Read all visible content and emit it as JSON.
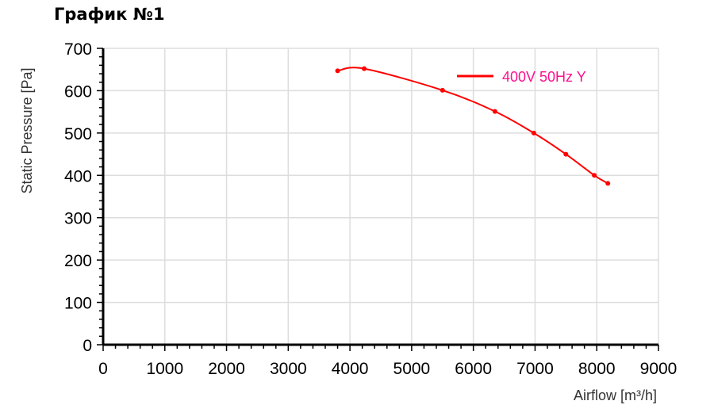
{
  "page": {
    "heading": "График №1"
  },
  "chart_data": {
    "type": "line",
    "title": "",
    "xlabel": "Airflow [m³/h]",
    "ylabel": "Static Pressure [Pa]",
    "xlim": [
      0,
      9000
    ],
    "ylim": [
      0,
      700
    ],
    "x_ticks": [
      "0",
      "1000",
      "2000",
      "3000",
      "4000",
      "5000",
      "6000",
      "7000",
      "8000",
      "9000"
    ],
    "y_ticks": [
      "0",
      "100",
      "200",
      "300",
      "400",
      "500",
      "600",
      "700"
    ],
    "grid": true,
    "legend": "top-right",
    "series": [
      {
        "name": "400V 50Hz Y",
        "color": "#ff0000",
        "legend_text_color": "#ff0f8f",
        "x": [
          3800,
          4230,
          5500,
          6350,
          6980,
          7500,
          7960,
          8180
        ],
        "y": [
          647,
          652,
          601,
          551,
          500,
          450,
          400,
          381
        ]
      }
    ]
  }
}
